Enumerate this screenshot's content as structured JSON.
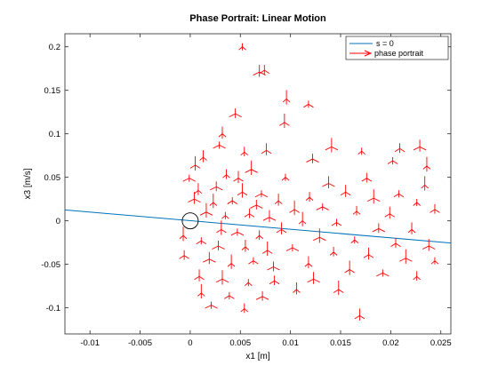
{
  "chart_data": {
    "type": "line",
    "title": "Phase Portrait: Linear Motion",
    "xlabel": "x1 [m]",
    "ylabel": "x3 [m/s]",
    "xlim": [
      -0.0125,
      0.026
    ],
    "ylim": [
      -0.13,
      0.215
    ],
    "xticks": [
      -0.01,
      -0.005,
      0,
      0.005,
      0.01,
      0.015,
      0.02,
      0.025
    ],
    "xtick_labels": [
      "-0.01",
      "-0.005",
      "0",
      "0.005",
      "0.01",
      "0.015",
      "0.02",
      "0.025"
    ],
    "yticks": [
      -0.1,
      -0.05,
      0,
      0.05,
      0.1,
      0.15,
      0.2
    ],
    "ytick_labels": [
      "-0.1",
      "-0.05",
      "0",
      "0.05",
      "0.1",
      "0.15",
      "0.2"
    ],
    "grid": false,
    "legend_location": "top-right",
    "series": [
      {
        "name": "s = 0",
        "color": "#0072bd",
        "x": [
          -0.0125,
          0.026
        ],
        "y": [
          0.0125,
          -0.0255
        ]
      },
      {
        "name": "phase portrait",
        "color": "#ff0000",
        "style": "quiver",
        "points": [
          [
            0.0052,
            0.198
          ],
          [
            0.0074,
            0.171
          ],
          [
            0.0069,
            0.169
          ],
          [
            0.0096,
            0.138
          ],
          [
            0.0118,
            0.132
          ],
          [
            0.0045,
            0.121
          ],
          [
            0.0032,
            0.098
          ],
          [
            0.0094,
            0.111
          ],
          [
            0.0029,
            0.085
          ],
          [
            0.0054,
            0.077
          ],
          [
            0.0076,
            0.079
          ],
          [
            0.0141,
            0.083
          ],
          [
            0.0171,
            0.078
          ],
          [
            0.0209,
            0.081
          ],
          [
            0.0229,
            0.083
          ],
          [
            0.0236,
            0.061
          ],
          [
            0.0202,
            0.067
          ],
          [
            0.0122,
            0.069
          ],
          [
            0.0013,
            0.071
          ],
          [
            0.0005,
            0.062
          ],
          [
            -0.0001,
            0.047
          ],
          [
            0.0036,
            0.051
          ],
          [
            0.0048,
            0.047
          ],
          [
            0.0061,
            0.057
          ],
          [
            0.0095,
            0.048
          ],
          [
            0.0176,
            0.047
          ],
          [
            0.0138,
            0.041
          ],
          [
            0.0234,
            0.039
          ],
          [
            0.0208,
            0.029
          ],
          [
            0.0026,
            0.037
          ],
          [
            0.0008,
            0.033
          ],
          [
            0.0052,
            0.031
          ],
          [
            0.0071,
            0.029
          ],
          [
            0.0119,
            0.025
          ],
          [
            0.0155,
            0.031
          ],
          [
            0.0183,
            0.024
          ],
          [
            0.0226,
            0.019
          ],
          [
            0.0244,
            0.011
          ],
          [
            0.0004,
            0.023
          ],
          [
            0.0023,
            0.019
          ],
          [
            0.0042,
            0.021
          ],
          [
            0.0066,
            0.016
          ],
          [
            0.0088,
            0.021
          ],
          [
            0.0104,
            0.011
          ],
          [
            0.0132,
            0.014
          ],
          [
            0.0166,
            0.009
          ],
          [
            0.0199,
            0.006
          ],
          [
            0.0016,
            0.008
          ],
          [
            0.0035,
            0.004
          ],
          [
            0.0059,
            0.006
          ],
          [
            0.0079,
            0.002
          ],
          [
            0.0112,
            -0.002
          ],
          [
            0.0146,
            -0.004
          ],
          [
            0.0188,
            -0.011
          ],
          [
            0.0221,
            -0.012
          ],
          [
            0.0031,
            -0.012
          ],
          [
            0.0047,
            -0.015
          ],
          [
            0.0069,
            -0.019
          ],
          [
            0.0091,
            -0.012
          ],
          [
            0.0129,
            -0.021
          ],
          [
            0.0164,
            -0.024
          ],
          [
            0.0205,
            -0.028
          ],
          [
            0.0238,
            -0.031
          ],
          [
            -0.0007,
            -0.019
          ],
          [
            0.0011,
            -0.025
          ],
          [
            0.0028,
            -0.031
          ],
          [
            0.0055,
            -0.032
          ],
          [
            0.0077,
            -0.036
          ],
          [
            0.0102,
            -0.033
          ],
          [
            0.0143,
            -0.038
          ],
          [
            0.0178,
            -0.041
          ],
          [
            0.0215,
            -0.045
          ],
          [
            0.0244,
            -0.048
          ],
          [
            -0.0006,
            -0.042
          ],
          [
            0.0019,
            -0.046
          ],
          [
            0.0041,
            -0.051
          ],
          [
            0.0063,
            -0.048
          ],
          [
            0.0083,
            -0.055
          ],
          [
            0.0118,
            -0.051
          ],
          [
            0.0159,
            -0.058
          ],
          [
            0.0192,
            -0.062
          ],
          [
            0.0226,
            -0.066
          ],
          [
            0.0009,
            -0.066
          ],
          [
            0.0032,
            -0.069
          ],
          [
            0.0058,
            -0.073
          ],
          [
            0.0084,
            -0.071
          ],
          [
            0.0123,
            -0.069
          ],
          [
            0.0011,
            -0.085
          ],
          [
            0.0039,
            -0.088
          ],
          [
            0.0072,
            -0.089
          ],
          [
            0.0106,
            -0.081
          ],
          [
            0.0148,
            -0.081
          ],
          [
            0.0021,
            -0.099
          ],
          [
            0.0054,
            -0.103
          ],
          [
            0.0169,
            -0.111
          ]
        ]
      }
    ],
    "annotations": [
      {
        "type": "circle",
        "x": 0.0,
        "y": 0.0
      }
    ]
  }
}
